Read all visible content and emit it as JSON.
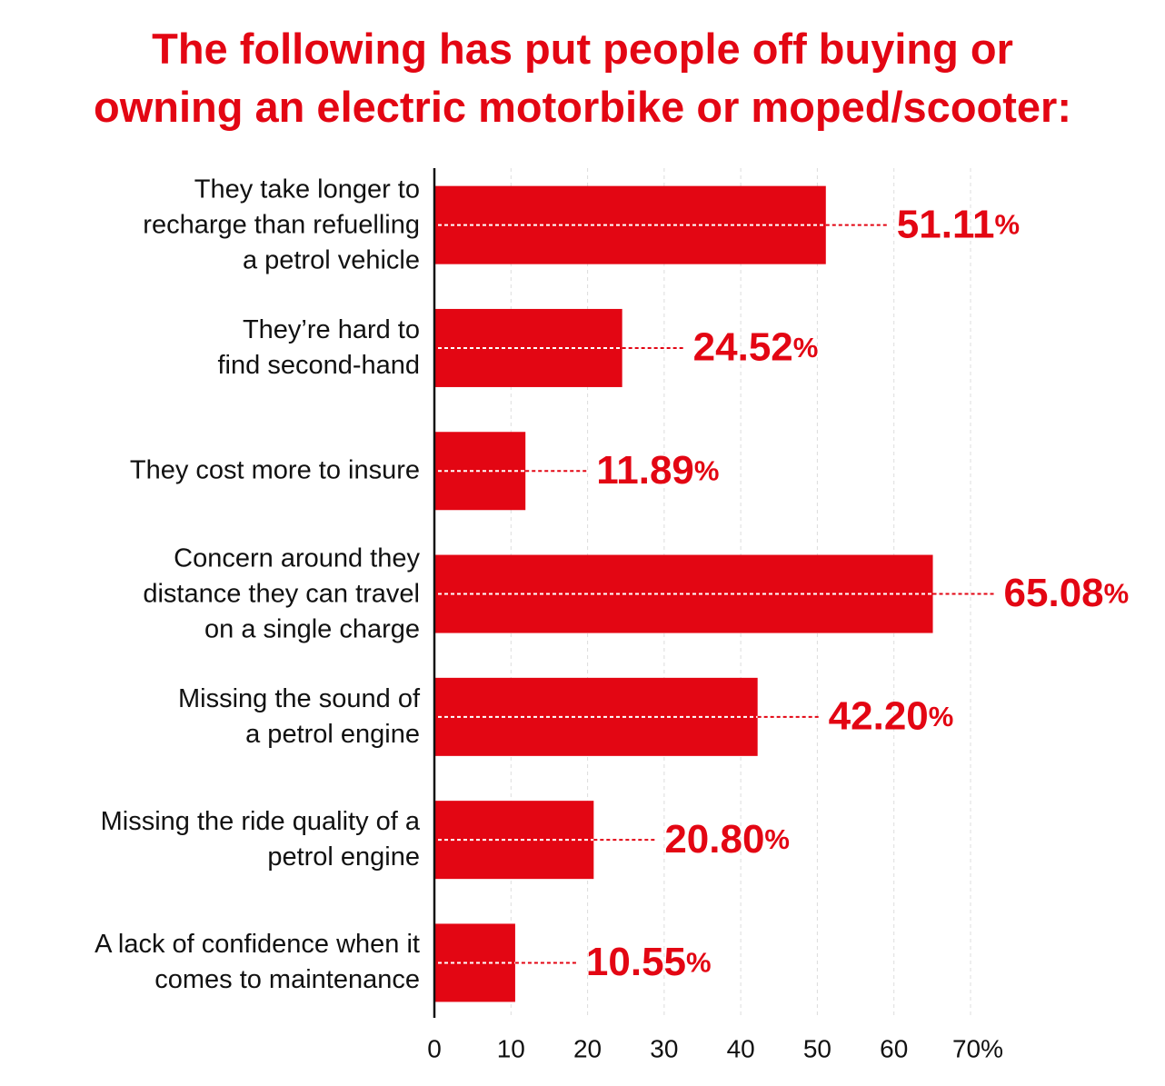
{
  "chart_data": {
    "type": "barh",
    "title": "The following has put people off buying or\nowning an electric motorbike or moped/scooter:",
    "categories": [
      "They take longer to\nrecharge than refuelling\na petrol vehicle",
      "They’re hard to\nfind second-hand",
      "They cost more to insure",
      "Concern around they\ndistance they can travel\non a single charge",
      "Missing the sound of\na petrol engine",
      "Missing the ride quality of a\npetrol engine",
      "A lack of confidence when it\ncomes to maintenance"
    ],
    "values": [
      51.11,
      24.52,
      11.89,
      65.08,
      42.2,
      20.8,
      10.55
    ],
    "value_labels": [
      "51.11%",
      "24.52%",
      "11.89%",
      "65.08%",
      "42.20%",
      "20.80%",
      "10.55%"
    ],
    "color": "#e30613",
    "xlim": [
      0,
      70
    ],
    "xticks": [
      0,
      10,
      20,
      30,
      40,
      50,
      60,
      {
        "value": 70,
        "label": "70%"
      }
    ],
    "grid": true
  }
}
